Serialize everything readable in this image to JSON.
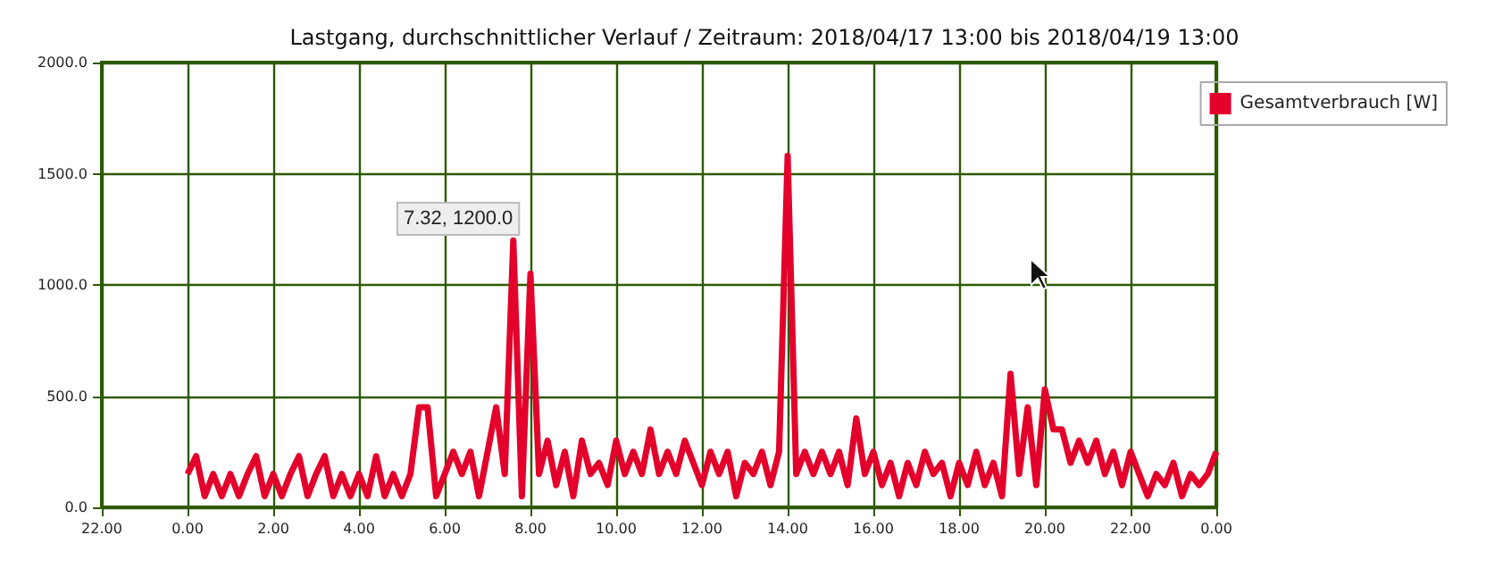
{
  "chart_data": {
    "type": "line",
    "title": "Lastgang, durchschnittlicher Verlauf / Zeitraum: 2018/04/17 13:00 bis 2018/04/19 13:00",
    "categories": [
      "22.00",
      null,
      null,
      null,
      null,
      null,
      null,
      null,
      null,
      null,
      "0.00",
      null,
      null,
      null,
      null,
      null,
      null,
      null,
      null,
      null,
      "2.00",
      null,
      null,
      null,
      null,
      null,
      null,
      null,
      null,
      null,
      "4.00",
      null,
      null,
      null,
      null,
      null,
      null,
      null,
      null,
      null,
      "6.00",
      null,
      null,
      null,
      null,
      null,
      null,
      null,
      null,
      null,
      "8.00",
      null,
      null,
      null,
      null,
      null,
      null,
      null,
      null,
      null,
      "10.00",
      null,
      null,
      null,
      null,
      null,
      null,
      null,
      null,
      null,
      "12.00",
      null,
      null,
      null,
      null,
      null,
      null,
      null,
      null,
      null,
      "14.00",
      null,
      null,
      null,
      null,
      null,
      null,
      null,
      null,
      null,
      "16.00",
      null,
      null,
      null,
      null,
      null,
      null,
      null,
      null,
      null,
      "18.00",
      null,
      null,
      null,
      null,
      null,
      null,
      null,
      null,
      null,
      "20.00",
      null,
      null,
      null,
      null,
      null,
      null,
      null,
      null,
      null,
      "22.00",
      null,
      null,
      null,
      null,
      null,
      null,
      null,
      null,
      null,
      "0.00"
    ],
    "series": [
      {
        "name": "Gesamtverbrauch [W]",
        "color": "#e3002b",
        "values": [
          null,
          null,
          null,
          null,
          null,
          null,
          null,
          null,
          null,
          null,
          150,
          230,
          50,
          150,
          50,
          150,
          50,
          150,
          230,
          50,
          150,
          50,
          150,
          230,
          50,
          150,
          230,
          50,
          150,
          50,
          150,
          50,
          230,
          50,
          150,
          50,
          150,
          450,
          450,
          50,
          150,
          250,
          150,
          250,
          50,
          250,
          450,
          150,
          1200,
          50,
          1050,
          150,
          300,
          100,
          250,
          50,
          300,
          150,
          200,
          100,
          300,
          150,
          250,
          150,
          350,
          150,
          250,
          150,
          300,
          200,
          100,
          250,
          150,
          250,
          50,
          200,
          150,
          250,
          100,
          250,
          1580,
          150,
          250,
          150,
          250,
          150,
          250,
          100,
          400,
          150,
          250,
          100,
          200,
          50,
          200,
          100,
          250,
          150,
          200,
          50,
          200,
          100,
          250,
          100,
          200,
          50,
          600,
          150,
          450,
          100,
          530,
          350,
          350,
          200,
          300,
          200,
          300,
          150,
          250,
          100,
          250,
          150,
          50,
          150,
          100,
          200,
          50,
          150,
          100,
          150,
          250
        ]
      }
    ],
    "ylim": [
      0,
      2000
    ],
    "yticks": [
      {
        "value": 0,
        "label": "0.0"
      },
      {
        "value": 500,
        "label": "500.0"
      },
      {
        "value": 1000,
        "label": "1000.0"
      },
      {
        "value": 1500,
        "label": "1500.0"
      },
      {
        "value": 2000,
        "label": "2000.0"
      }
    ],
    "annotations": [
      "7.32, 1200.0"
    ],
    "grid": true,
    "legend": "top right",
    "marker": "none",
    "line_style": "solid"
  }
}
